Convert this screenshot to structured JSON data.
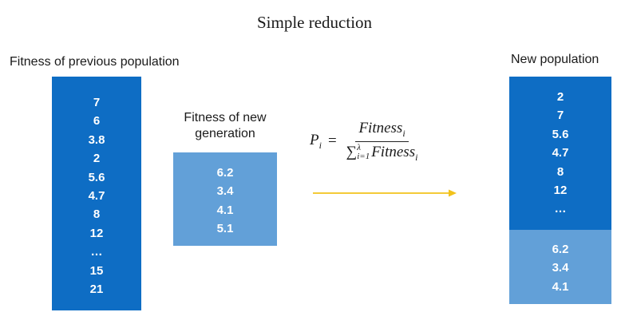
{
  "title": "Simple reduction",
  "previous": {
    "label": "Fitness of previous population",
    "values": [
      "7",
      "6",
      "3.8",
      "2",
      "5.6",
      "4.7",
      "8",
      "12",
      "…",
      "15",
      "21"
    ]
  },
  "generation": {
    "label_line1": "Fitness of new",
    "label_line2": "generation",
    "values": [
      "6.2",
      "3.4",
      "4.1",
      "5.1"
    ]
  },
  "new_population": {
    "label": "New population",
    "kept_values": [
      "2",
      "7",
      "5.6",
      "4.7",
      "8",
      "12",
      "…"
    ],
    "new_values": [
      "6.2",
      "3.4",
      "4.1"
    ]
  },
  "formula": {
    "lhs": "P",
    "lhs_sub": "i",
    "eq": "=",
    "numerator": "Fitness",
    "numerator_sub": "i",
    "sum_symbol": "∑",
    "sum_lower": "i=1",
    "sum_upper": "λ",
    "denominator": "Fitness",
    "denominator_sub": "i"
  },
  "colors": {
    "dark_blue": "#0e6dc4",
    "light_blue": "#62a0d8",
    "arrow": "#f2c21b"
  }
}
